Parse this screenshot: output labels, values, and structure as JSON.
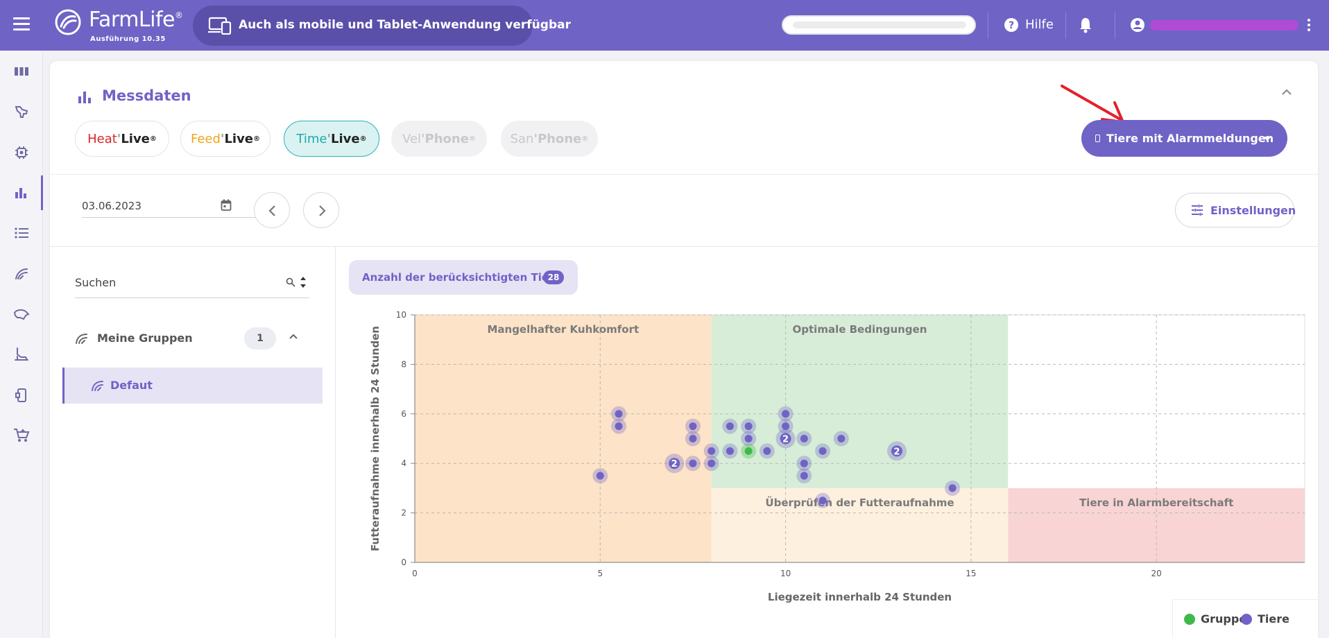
{
  "header": {
    "brand": "FarmLife",
    "brand_reg": "®",
    "version": "Ausführung 10.35",
    "mobile_banner": "Auch als mobile und Tablet-Anwendung verfügbar",
    "help_label": "Hilfe"
  },
  "sidebar": {
    "items": [
      {
        "icon": "dashboard-icon"
      },
      {
        "icon": "cow-icon"
      },
      {
        "icon": "sensor-icon"
      },
      {
        "icon": "bar-chart-icon",
        "active": true
      },
      {
        "icon": "list-icon"
      },
      {
        "icon": "feeding-icon"
      },
      {
        "icon": "health-icon"
      },
      {
        "icon": "milking-icon"
      },
      {
        "icon": "device-icon"
      },
      {
        "icon": "cart-icon"
      }
    ]
  },
  "section": {
    "title": "Messdaten",
    "products": [
      {
        "prefix": "Heat",
        "suffix": "Live",
        "reg": "®",
        "state": "normal",
        "prefix_color": "#d8282b"
      },
      {
        "prefix": "Feed",
        "suffix": "Live",
        "reg": "®",
        "state": "normal",
        "prefix_color": "#f0a61a"
      },
      {
        "prefix": "Time",
        "suffix": "Live",
        "reg": "®",
        "state": "active",
        "prefix_color": "#1eaaa8"
      },
      {
        "prefix": "Vel",
        "suffix": "Phone",
        "reg": "®",
        "state": "disabled",
        "prefix_color": "#c8c8cc"
      },
      {
        "prefix": "San",
        "suffix": "Phone",
        "reg": "®",
        "state": "disabled",
        "prefix_color": "#c8c8cc"
      }
    ],
    "product_separator": "'",
    "alarm_button": "Tiere mit Alarmmeldungen"
  },
  "controls": {
    "date": "03.06.2023",
    "settings_label": "Einstellungen"
  },
  "left_panel": {
    "search_placeholder": "Suchen",
    "groups_label": "Meine Gruppen",
    "groups_count": "1",
    "group_item": "Defaut"
  },
  "count": {
    "label": "Anzahl der berücksichtigten Tiere",
    "value": "28"
  },
  "colors": {
    "accent": "#6f63c6",
    "zone_orange": "#fde3c7",
    "zone_green": "#d7edd8",
    "zone_lightorange": "#fdf0de",
    "zone_red": "#f9d4d4",
    "point_animal": "#6f63c6",
    "point_group": "#3fb94a"
  },
  "chart_data": {
    "type": "scatter",
    "xlabel": "Liegezeit innerhalb 24 Stunden",
    "ylabel": "Futteraufnahme innerhalb 24 Stunden",
    "xlim": [
      0,
      24
    ],
    "ylim": [
      0,
      10
    ],
    "xticks": [
      0,
      5,
      10,
      15,
      20
    ],
    "yticks": [
      0,
      2,
      4,
      6,
      8,
      10
    ],
    "grid": true,
    "legend_position": "bottom-right",
    "zones": [
      {
        "label": "Mangelhafter Kuhkomfort",
        "x": [
          0,
          8
        ],
        "y": [
          0,
          10
        ],
        "color": "#fde3c7"
      },
      {
        "label": "Optimale Bedingungen",
        "x": [
          8,
          16
        ],
        "y": [
          3,
          10
        ],
        "color": "#d7edd8"
      },
      {
        "label": "Überprüfen der Futteraufnahme",
        "x": [
          8,
          16
        ],
        "y": [
          0,
          3
        ],
        "color": "#fdf0de"
      },
      {
        "label": "Tiere in Alarmbereitschaft",
        "x": [
          16,
          24
        ],
        "y": [
          0,
          3
        ],
        "color": "#f9d4d4"
      },
      {
        "label": "",
        "x": [
          16,
          24
        ],
        "y": [
          3,
          10
        ],
        "color": "#ffffff"
      }
    ],
    "series": [
      {
        "name": "Gruppe",
        "color": "#3fb94a",
        "points": [
          {
            "x": 9,
            "y": 4.5,
            "count": 1
          }
        ]
      },
      {
        "name": "Tiere",
        "color": "#6f63c6",
        "points": [
          {
            "x": 5,
            "y": 3.5,
            "count": 1
          },
          {
            "x": 5.5,
            "y": 6,
            "count": 1
          },
          {
            "x": 5.5,
            "y": 5.5,
            "count": 1
          },
          {
            "x": 7,
            "y": 4,
            "count": 2
          },
          {
            "x": 7.5,
            "y": 5.5,
            "count": 1
          },
          {
            "x": 7.5,
            "y": 5,
            "count": 1
          },
          {
            "x": 7.5,
            "y": 4,
            "count": 1
          },
          {
            "x": 8,
            "y": 4.5,
            "count": 1
          },
          {
            "x": 8,
            "y": 4,
            "count": 1
          },
          {
            "x": 8.5,
            "y": 5.5,
            "count": 1
          },
          {
            "x": 8.5,
            "y": 4.5,
            "count": 1
          },
          {
            "x": 9,
            "y": 5.5,
            "count": 1
          },
          {
            "x": 9,
            "y": 5,
            "count": 1
          },
          {
            "x": 9.5,
            "y": 4.5,
            "count": 1
          },
          {
            "x": 10,
            "y": 6,
            "count": 1
          },
          {
            "x": 10,
            "y": 5.5,
            "count": 1
          },
          {
            "x": 10,
            "y": 5,
            "count": 2
          },
          {
            "x": 10.5,
            "y": 5,
            "count": 1
          },
          {
            "x": 10.5,
            "y": 4,
            "count": 1
          },
          {
            "x": 10.5,
            "y": 3.5,
            "count": 1
          },
          {
            "x": 11,
            "y": 4.5,
            "count": 1
          },
          {
            "x": 11.5,
            "y": 5,
            "count": 1
          },
          {
            "x": 11,
            "y": 2.5,
            "count": 1
          },
          {
            "x": 13,
            "y": 4.5,
            "count": 2
          },
          {
            "x": 14.5,
            "y": 3,
            "count": 1
          }
        ]
      }
    ]
  }
}
